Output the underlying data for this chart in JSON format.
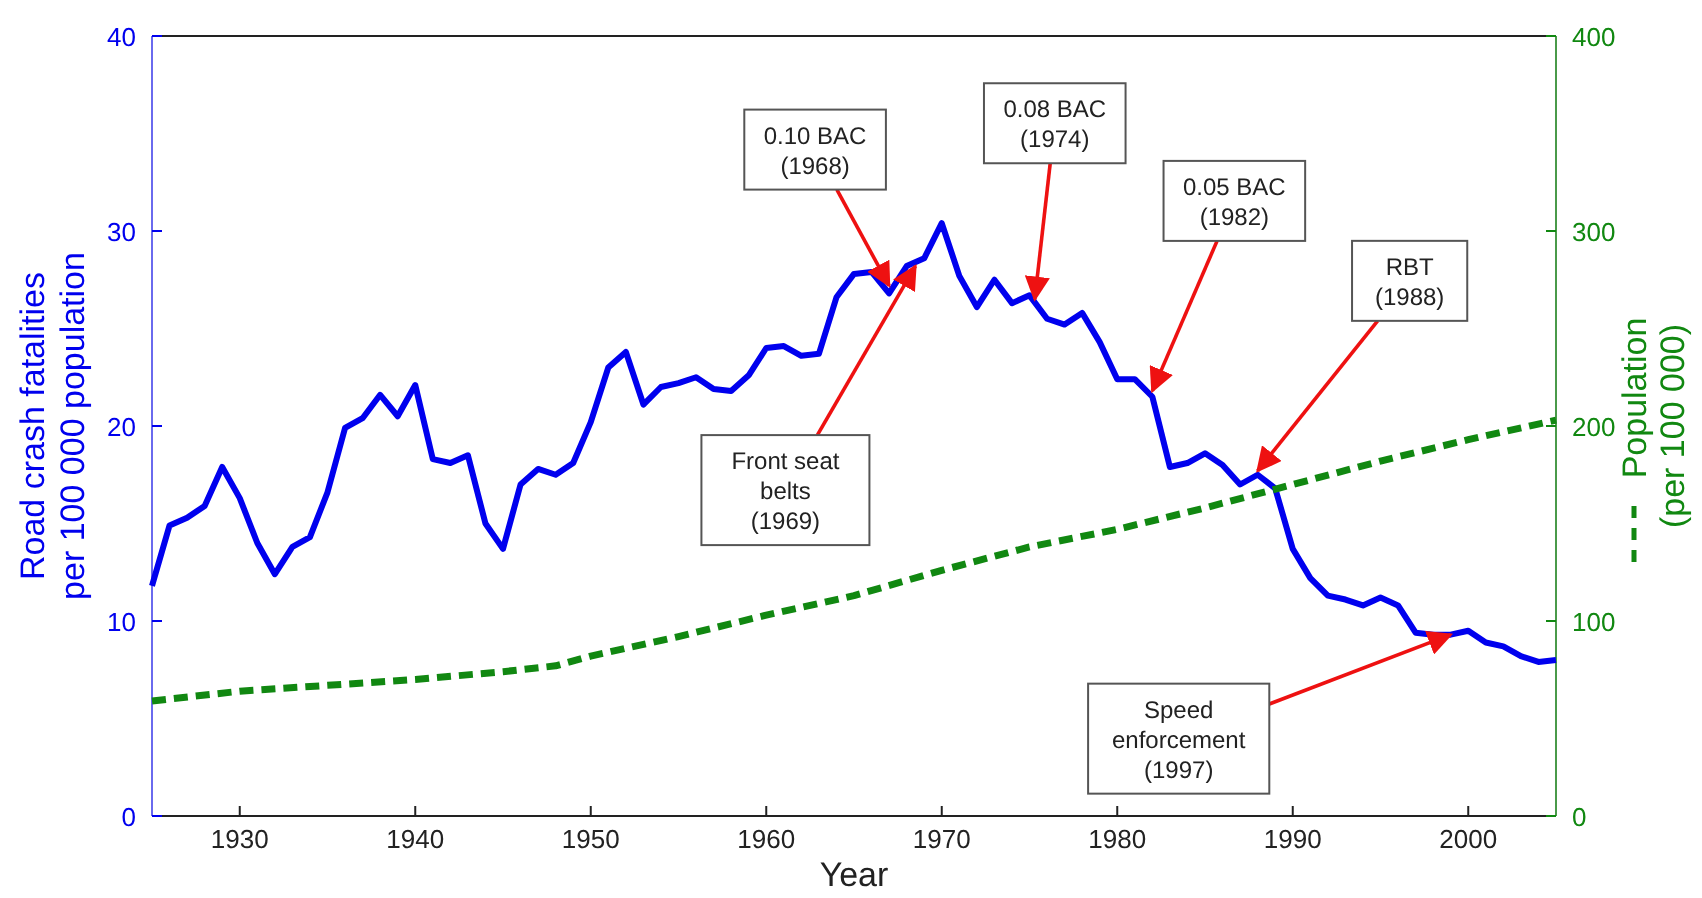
{
  "chart_data": {
    "type": "line",
    "xlabel": "Year",
    "ylabel": "Road crash fatalities\nper 100 000 population",
    "y2label": "Population\n(per 100 000)",
    "xlim": [
      1925,
      2005
    ],
    "xticks": [
      1930,
      1940,
      1950,
      1960,
      1970,
      1980,
      1990,
      2000
    ],
    "ylim": [
      0,
      40
    ],
    "yticks": [
      0,
      10,
      20,
      30,
      40
    ],
    "y2lim": [
      0,
      400
    ],
    "y2ticks": [
      0,
      100,
      200,
      300,
      400
    ],
    "grid": false,
    "marker": "none",
    "series": [
      {
        "color": "#0000ee",
        "line_style": "solid",
        "x": [
          1925,
          1926,
          1927,
          1928,
          1929,
          1930,
          1931,
          1932,
          1933,
          1934,
          1935,
          1936,
          1937,
          1938,
          1939,
          1940,
          1941,
          1942,
          1943,
          1944,
          1945,
          1946,
          1947,
          1948,
          1949,
          1950,
          1951,
          1952,
          1953,
          1954,
          1955,
          1956,
          1957,
          1958,
          1959,
          1960,
          1961,
          1962,
          1963,
          1964,
          1965,
          1966,
          1967,
          1968,
          1969,
          1970,
          1971,
          1972,
          1973,
          1974,
          1975,
          1976,
          1977,
          1978,
          1979,
          1980,
          1981,
          1982,
          1983,
          1984,
          1985,
          1986,
          1987,
          1988,
          1989,
          1990,
          1991,
          1992,
          1993,
          1994,
          1995,
          1996,
          1997,
          1998,
          1999,
          2000,
          2001,
          2002,
          2003,
          2004,
          2005
        ],
        "values": [
          11.8,
          14.9,
          15.3,
          15.9,
          17.9,
          16.3,
          14.0,
          12.4,
          13.8,
          14.3,
          16.6,
          19.9,
          20.4,
          21.6,
          20.5,
          22.1,
          18.3,
          18.1,
          18.5,
          15.0,
          13.7,
          17.0,
          17.8,
          17.5,
          18.1,
          20.2,
          23.0,
          23.8,
          21.1,
          22.0,
          22.2,
          22.5,
          21.9,
          21.8,
          22.6,
          24.0,
          24.1,
          23.6,
          23.7,
          26.6,
          27.8,
          27.9,
          26.8,
          28.2,
          28.6,
          30.4,
          27.7,
          26.1,
          27.5,
          26.3,
          26.7,
          25.5,
          25.2,
          25.8,
          24.3,
          22.4,
          22.4,
          21.5,
          17.9,
          18.1,
          18.6,
          18.0,
          17.0,
          17.5,
          16.8,
          13.7,
          12.2,
          11.3,
          11.1,
          10.8,
          11.2,
          10.8,
          9.4,
          9.3,
          9.3,
          9.5,
          8.9,
          8.7,
          8.2,
          7.9,
          8.0
        ]
      },
      {
        "color": "#118811",
        "line_style": "dashed",
        "axis": "y2",
        "x": [
          1925,
          1930,
          1935,
          1940,
          1945,
          1948,
          1950,
          1955,
          1960,
          1965,
          1970,
          1975,
          1980,
          1985,
          1990,
          1995,
          2000,
          2005
        ],
        "values": [
          59,
          64,
          67,
          70,
          74,
          77,
          82,
          92,
          103,
          113,
          126,
          138,
          147,
          158,
          170,
          182,
          193,
          203
        ]
      }
    ],
    "annotations": [
      {
        "text": "0.10 BAC\n(1968)",
        "x": 1967,
        "y": 27.2
      },
      {
        "text": "Front seat\nbelts\n(1969)",
        "x": 1968.5,
        "y": 28.2
      },
      {
        "text": "0.08 BAC\n(1974)",
        "x": 1975.3,
        "y": 26.5
      },
      {
        "text": "0.05 BAC\n(1982)",
        "x": 1982,
        "y": 21.8
      },
      {
        "text": "RBT\n(1988)",
        "x": 1988,
        "y": 17.7
      },
      {
        "text": "Speed\nenforcement\n(1997)",
        "x": 1999,
        "y": 9.3
      }
    ]
  }
}
